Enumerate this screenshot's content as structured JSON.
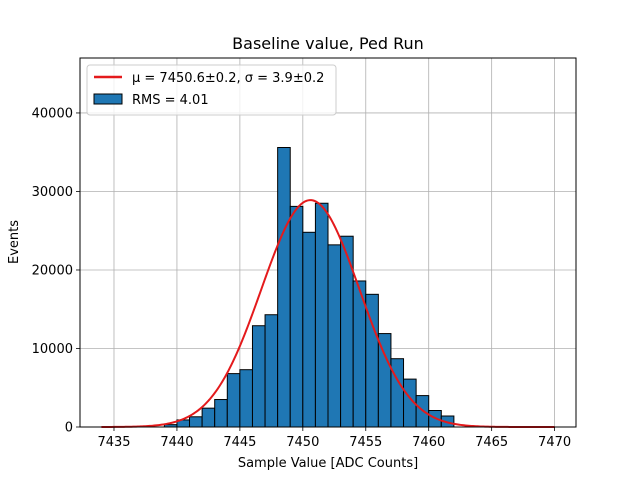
{
  "chart_data": {
    "type": "bar",
    "title": "Baseline value, Ped Run",
    "xlabel": "Sample Value [ADC Counts]",
    "ylabel": "Events",
    "xlim": [
      7432.3,
      7471.7
    ],
    "ylim": [
      0,
      47000
    ],
    "xticks": [
      7435,
      7440,
      7445,
      7450,
      7455,
      7460,
      7465,
      7470
    ],
    "yticks": [
      0,
      10000,
      20000,
      30000,
      40000
    ],
    "grid": true,
    "legend_position": "top-left",
    "histogram": {
      "name": "RMS = 4.01",
      "color": "#1f77b4",
      "edge_color": "#000000",
      "bin_edges": [
        7439,
        7440,
        7441,
        7442,
        7443,
        7444,
        7445,
        7446,
        7447,
        7448,
        7449,
        7450,
        7451,
        7452,
        7453,
        7454,
        7455,
        7456,
        7457,
        7458,
        7459,
        7460,
        7461,
        7462
      ],
      "counts": [
        300,
        900,
        1300,
        2400,
        3500,
        6800,
        7300,
        12900,
        14300,
        35600,
        28100,
        24800,
        28500,
        23200,
        24300,
        18600,
        16900,
        11900,
        8700,
        6100,
        4000,
        2100,
        1400,
        600
      ]
    },
    "fit": {
      "name": "μ = 7450.6±0.2, σ = 3.9±0.2",
      "color": "#e41a1c",
      "type": "gaussian",
      "mu": 7450.6,
      "sigma": 3.9,
      "amplitude": 28900,
      "x_range": [
        7434,
        7470
      ]
    }
  }
}
